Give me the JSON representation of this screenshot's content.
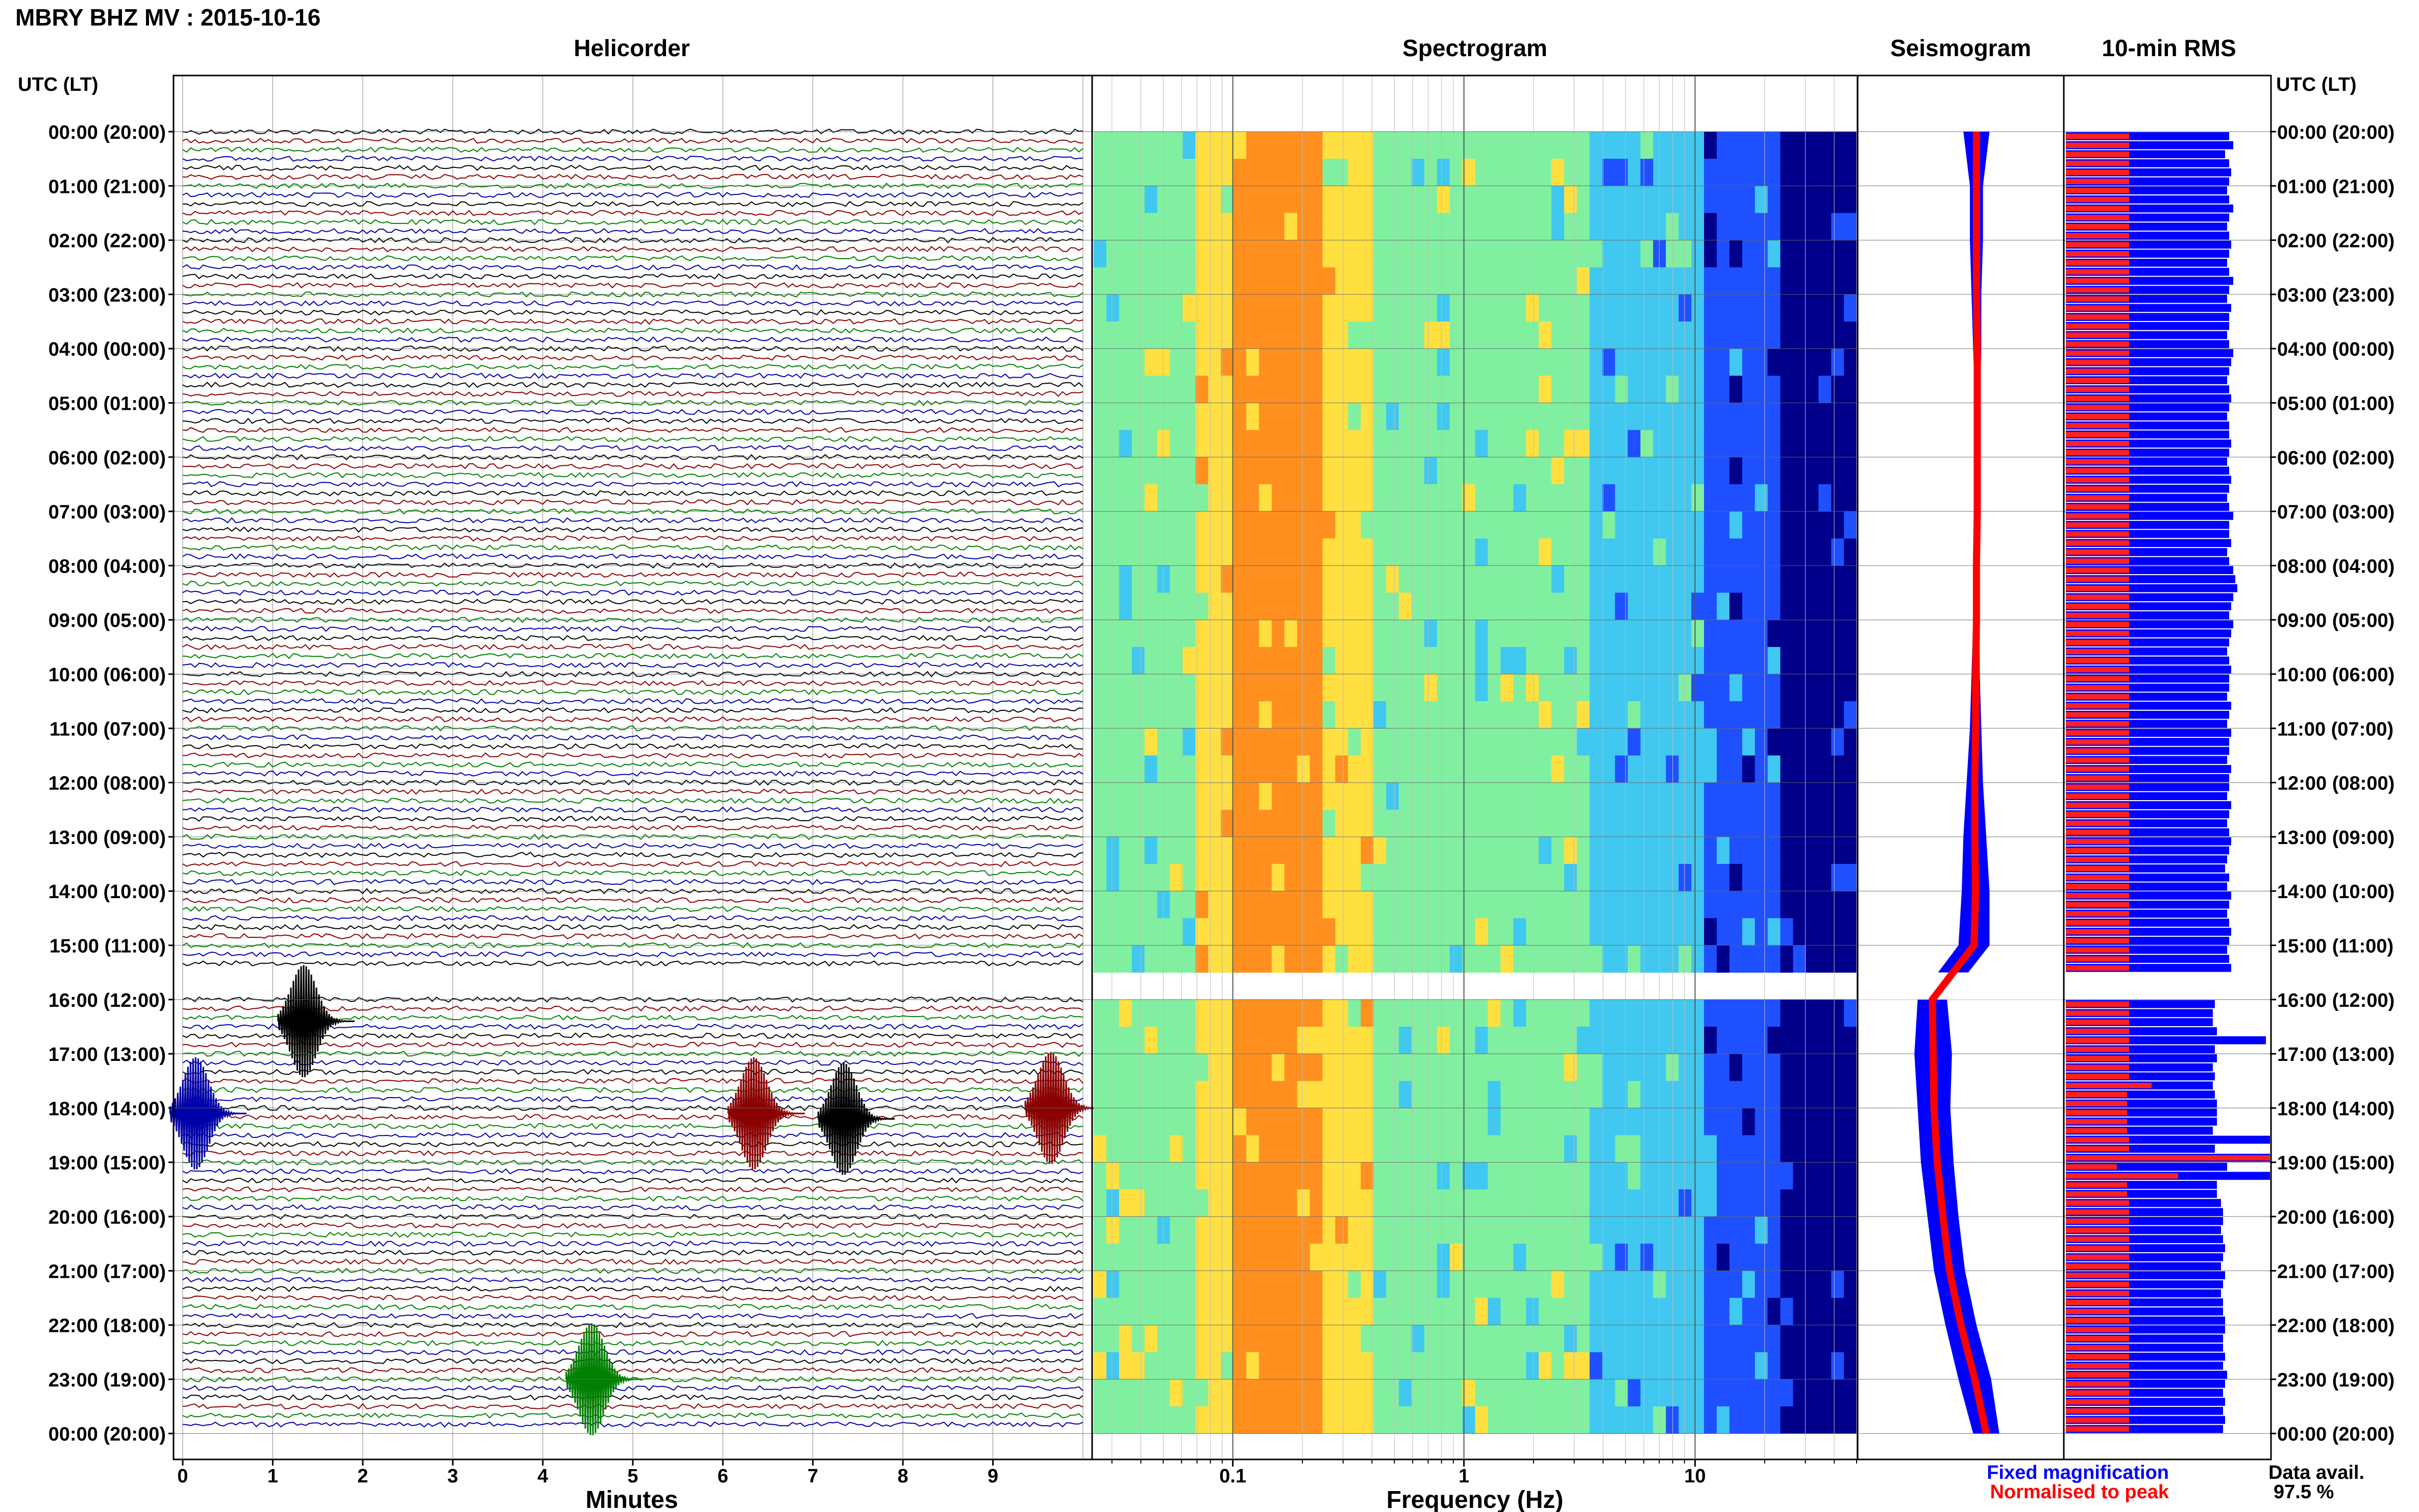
{
  "title": "MBRY BHZ MV : 2015-10-16",
  "panels": {
    "helicorder": "Helicorder",
    "spectrogram": "Spectrogram",
    "seismogram": "Seismogram",
    "rms": "10-min RMS"
  },
  "axis_labels": {
    "left_time": "UTC (LT)",
    "right_time": "UTC (LT)",
    "minutes": "Minutes",
    "frequency": "Frequency (Hz)"
  },
  "time_ticks": [
    "00:00 (20:00)",
    "01:00 (21:00)",
    "02:00 (22:00)",
    "03:00 (23:00)",
    "04:00 (00:00)",
    "05:00 (01:00)",
    "06:00 (02:00)",
    "07:00 (03:00)",
    "08:00 (04:00)",
    "09:00 (05:00)",
    "10:00 (06:00)",
    "11:00 (07:00)",
    "12:00 (08:00)",
    "13:00 (09:00)",
    "14:00 (10:00)",
    "15:00 (11:00)",
    "16:00 (12:00)",
    "17:00 (13:00)",
    "18:00 (14:00)",
    "19:00 (15:00)",
    "20:00 (16:00)",
    "21:00 (17:00)",
    "22:00 (18:00)",
    "23:00 (19:00)",
    "00:00 (20:00)"
  ],
  "minute_ticks": [
    "0",
    "1",
    "2",
    "3",
    "4",
    "5",
    "6",
    "7",
    "8",
    "9"
  ],
  "freq_ticks": [
    "0.1",
    "1",
    "10"
  ],
  "legend": {
    "fixed": "Fixed magnification",
    "normalised": "Normalised to peak",
    "fixed_color": "#0000ff",
    "normalised_color": "#ff0000"
  },
  "data_avail": {
    "label": "Data avail.",
    "value": "97.5 %"
  },
  "chart_data": {
    "type": "heatmap",
    "trace_colors": [
      "#000000",
      "#8b0000",
      "#008000",
      "#0000aa"
    ],
    "spectrogram_colormap": [
      "#00008b",
      "#1f50ff",
      "#40c8f0",
      "#80f0a0",
      "#ffe040",
      "#ff9020"
    ],
    "freq_range_hz": [
      0.025,
      50
    ],
    "freq_scale": "log",
    "minutes_range": [
      0,
      10
    ],
    "hours_range": [
      0,
      24
    ],
    "data_gap_hours": [
      15.5,
      16.0
    ],
    "events": [
      {
        "hour": 16.4,
        "minute": 1.4,
        "color": "#000000"
      },
      {
        "hour": 18.1,
        "minute": 0.2,
        "color": "#0000aa"
      },
      {
        "hour": 18.1,
        "minute": 6.4,
        "color": "#8b0000"
      },
      {
        "hour": 18.2,
        "minute": 7.4,
        "color": "#000000"
      },
      {
        "hour": 18.0,
        "minute": 9.7,
        "color": "#8b0000"
      },
      {
        "hour": 23.0,
        "minute": 4.6,
        "color": "#008000"
      }
    ],
    "rms_normalised": [
      0.31,
      0.31,
      0.31,
      0.31,
      0.31,
      0.31,
      0.31,
      0.31,
      0.31,
      0.31,
      0.31,
      0.31,
      0.31,
      0.31,
      0.31,
      0.31,
      0.31,
      0.31,
      0.31,
      0.31,
      0.31,
      0.31,
      0.31,
      0.31,
      0.31,
      0.31,
      0.31,
      0.31,
      0.31,
      0.31,
      0.31,
      0.31,
      0.31,
      0.31,
      0.31,
      0.31,
      0.31,
      0.31,
      0.31,
      0.31,
      0.31,
      0.31,
      0.31,
      0.31,
      0.31,
      0.31,
      0.31,
      0.31,
      0.31,
      0.31,
      0.31,
      0.31,
      0.31,
      0.31,
      0.31,
      0.31,
      0.31,
      0.31,
      0.31,
      0.31,
      0.31,
      0.31,
      0.31,
      0.31,
      0.31,
      0.31,
      0.31,
      0.31,
      0.31,
      0.31,
      0.31,
      0.31,
      0.31,
      0.31,
      0.31,
      0.31,
      0.31,
      0.31,
      0.31,
      0.31,
      0.31,
      0.31,
      0.31,
      0.31,
      0.31,
      0.31,
      0.31,
      0.31,
      0.31,
      0.31,
      0.31,
      0.31,
      0.31,
      0.31,
      0.31,
      0.31,
      0.31,
      0.31,
      0.31,
      0.31,
      0.31,
      0.31,
      0.31,
      0.31,
      0.31,
      0.42,
      0.3,
      0.3,
      0.3,
      0.3,
      0.3,
      0.31,
      0.31,
      1.0,
      0.25,
      0.55,
      0.3,
      0.3,
      0.31,
      0.31,
      0.31,
      0.31,
      0.31,
      0.31,
      0.31,
      0.31,
      0.31,
      0.31,
      0.31,
      0.31,
      0.31,
      0.31,
      0.31,
      0.31,
      0.31,
      0.31,
      0.31,
      0.31,
      0.31,
      0.31,
      0.31,
      0.31,
      0.31,
      0.31,
      0.31,
      0.31,
      0.31,
      0.31,
      0.31,
      0.31,
      0.31,
      0.31,
      0.31,
      0.31
    ],
    "rms_fixed": [
      0.8,
      0.82,
      0.78,
      0.8,
      0.81,
      0.8,
      0.79,
      0.8,
      0.82,
      0.8,
      0.79,
      0.8,
      0.81,
      0.8,
      0.79,
      0.8,
      0.82,
      0.8,
      0.79,
      0.81,
      0.8,
      0.8,
      0.79,
      0.8,
      0.82,
      0.81,
      0.8,
      0.79,
      0.8,
      0.81,
      0.8,
      0.79,
      0.8,
      0.8,
      0.81,
      0.8,
      0.79,
      0.8,
      0.81,
      0.8,
      0.79,
      0.8,
      0.82,
      0.8,
      0.8,
      0.81,
      0.79,
      0.8,
      0.82,
      0.83,
      0.84,
      0.82,
      0.81,
      0.8,
      0.82,
      0.81,
      0.8,
      0.79,
      0.8,
      0.81,
      0.8,
      0.8,
      0.79,
      0.81,
      0.8,
      0.79,
      0.81,
      0.8,
      0.8,
      0.79,
      0.81,
      0.8,
      0.8,
      0.79,
      0.81,
      0.8,
      0.79,
      0.8,
      0.81,
      0.8,
      0.79,
      0.78,
      0.8,
      0.79,
      0.81,
      0.8,
      0.79,
      0.8,
      0.81,
      0.8,
      0.79,
      0.8,
      0.81,
      0.8,
      0.74,
      0.75,
      0.73,
      0.72,
      0.72,
      0.74,
      0.98,
      0.73,
      0.74,
      0.72,
      0.73,
      0.72,
      0.73,
      0.74,
      0.74,
      0.74,
      0.72,
      1.0,
      0.73,
      1.0,
      0.79,
      1.0,
      0.74,
      0.74,
      0.76,
      0.77,
      0.77,
      0.76,
      0.77,
      0.78,
      0.77,
      0.76,
      0.78,
      0.77,
      0.76,
      0.77,
      0.77,
      0.78,
      0.78,
      0.77,
      0.77,
      0.78,
      0.77,
      0.79,
      0.78,
      0.77,
      0.78,
      0.77,
      0.78,
      0.77,
      0.78,
      0.8,
      0.79,
      0.78,
      0.79,
      0.81,
      0.8,
      0.78,
      0.8,
      0.79
    ],
    "seis_envelope": [
      [
        0.46,
        0.62
      ],
      [
        0.5,
        0.58
      ],
      [
        0.5,
        0.58
      ],
      [
        0.51,
        0.57
      ],
      [
        0.52,
        0.57
      ],
      [
        0.53,
        0.56
      ],
      [
        0.53,
        0.56
      ],
      [
        0.53,
        0.56
      ],
      [
        0.52,
        0.56
      ],
      [
        0.52,
        0.56
      ],
      [
        0.51,
        0.56
      ],
      [
        0.5,
        0.57
      ],
      [
        0.48,
        0.58
      ],
      [
        0.46,
        0.6
      ],
      [
        0.45,
        0.62
      ],
      [
        0.43,
        0.62
      ],
      [
        0.18,
        0.36
      ],
      [
        0.16,
        0.39
      ],
      [
        0.18,
        0.38
      ],
      [
        0.2,
        0.4
      ],
      [
        0.24,
        0.43
      ],
      [
        0.28,
        0.47
      ],
      [
        0.35,
        0.54
      ],
      [
        0.43,
        0.63
      ],
      [
        0.52,
        0.68
      ]
    ]
  }
}
